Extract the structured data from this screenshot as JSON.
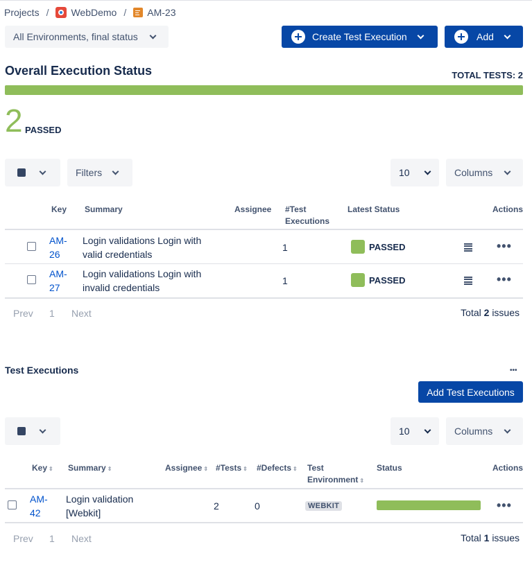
{
  "breadcrumb": {
    "root": "Projects",
    "project": "WebDemo",
    "issue": "AM-23"
  },
  "toolbar": {
    "env_select": "All Environments, final status",
    "create_label": "Create Test Execution",
    "add_label": "Add"
  },
  "overall": {
    "title": "Overall Execution Status",
    "total_tests": "TOTAL TESTS: 2",
    "passed_fraction": 1.0,
    "passed_count": "2",
    "passed_label": "PASSED"
  },
  "tests_table": {
    "filters_label": "Filters",
    "page_size": "10",
    "columns_label": "Columns",
    "headers": {
      "key": "Key",
      "summary": "Summary",
      "assignee": "Assignee",
      "executions_1": "#Test",
      "executions_2": "Executions",
      "status": "Latest Status",
      "actions": "Actions"
    },
    "rows": [
      {
        "key_1": "AM-",
        "key_2": "26",
        "summary_1": "Login validations Login with",
        "summary_2": "valid credentials",
        "assignee": "",
        "executions": "1",
        "status": "PASSED"
      },
      {
        "key_1": "AM-",
        "key_2": "27",
        "summary_1": "Login validations Login with",
        "summary_2": "invalid credentials",
        "assignee": "",
        "executions": "1",
        "status": "PASSED"
      }
    ],
    "pager": {
      "prev": "Prev",
      "page": "1",
      "next": "Next"
    },
    "total": {
      "prefix": "Total",
      "count": "2",
      "suffix": "issues"
    }
  },
  "executions": {
    "title": "Test Executions",
    "more": "•••",
    "add_label": "Add Test Executions",
    "page_size": "10",
    "columns_label": "Columns",
    "headers": {
      "key": "Key",
      "summary": "Summary",
      "assignee": "Assignee",
      "tests": "#Tests",
      "defects": "#Defects",
      "env_1": "Test",
      "env_2": "Environment",
      "status": "Status",
      "actions": "Actions"
    },
    "rows": [
      {
        "key_1": "AM-",
        "key_2": "42",
        "summary_1": "Login validation",
        "summary_2": "[Webkit]",
        "assignee": "",
        "tests": "2",
        "defects": "0",
        "environment": "WEBKIT",
        "passed_fraction": 1.0
      }
    ],
    "pager": {
      "prev": "Prev",
      "page": "1",
      "next": "Next"
    },
    "total": {
      "prefix": "Total",
      "count": "1",
      "suffix": "issues"
    }
  },
  "colors": {
    "primary": "#0747a6",
    "passed": "#8fbd5a",
    "link": "#0052cc"
  }
}
